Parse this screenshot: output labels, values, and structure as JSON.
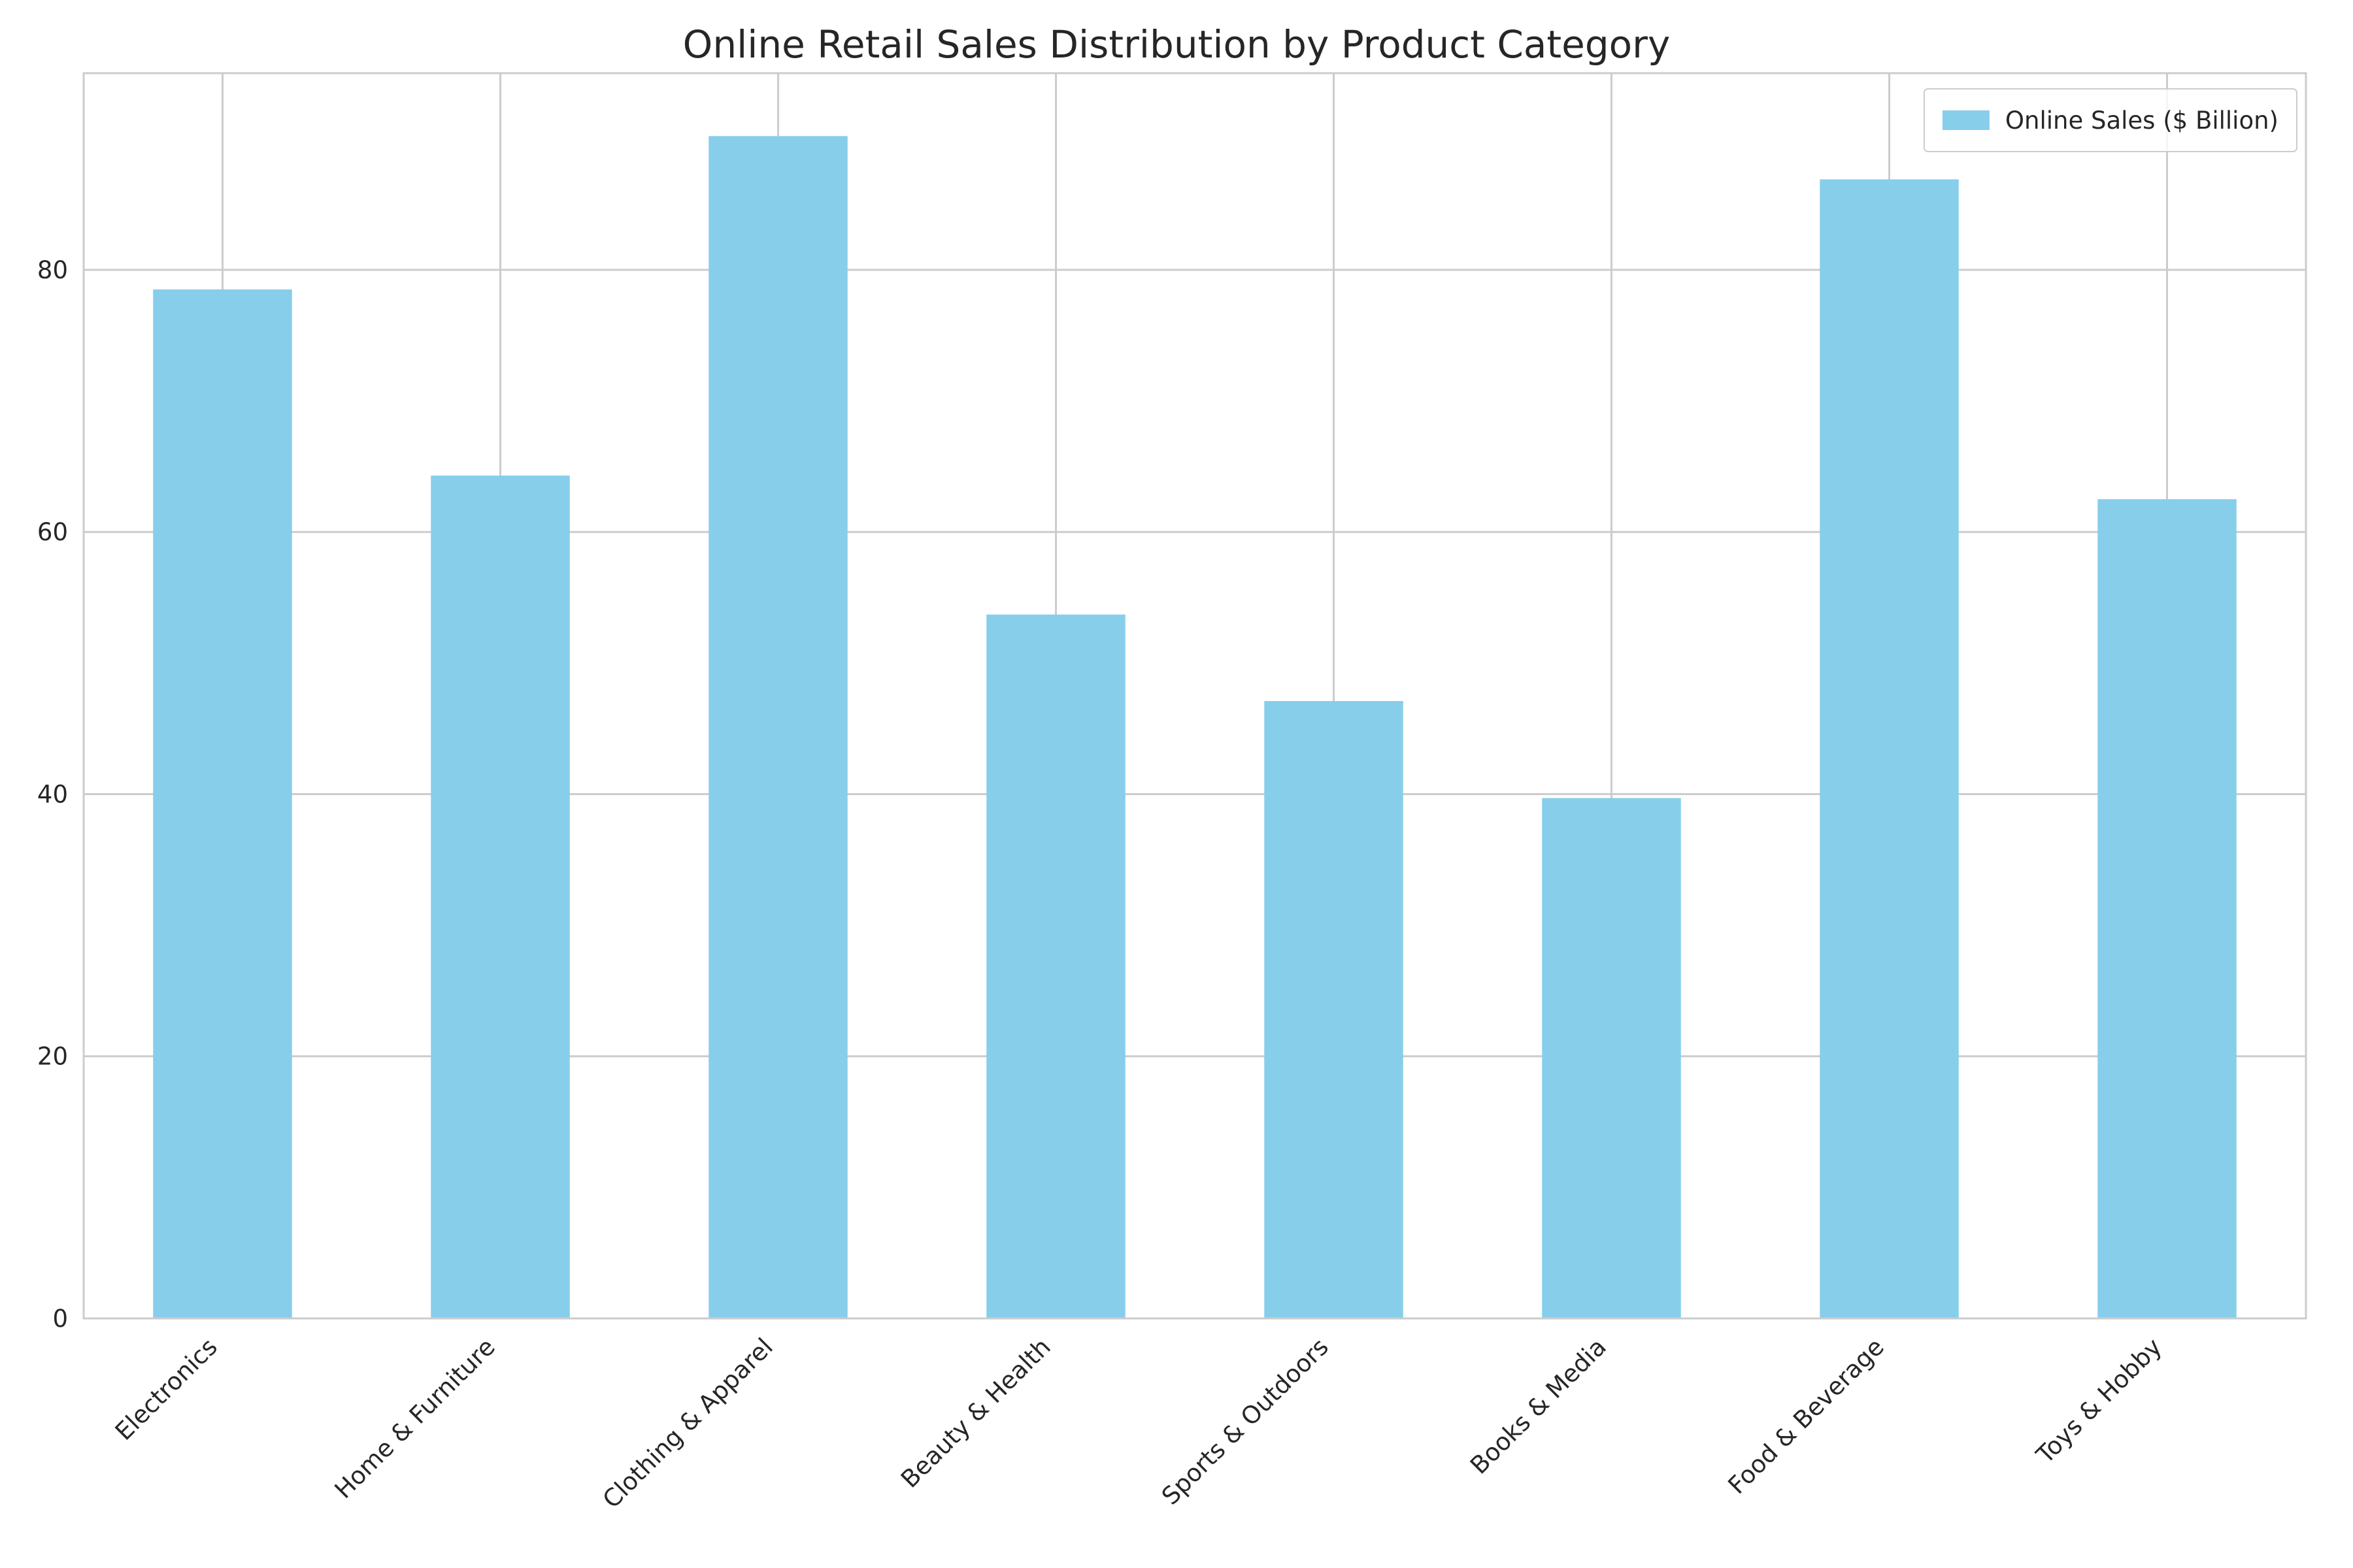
{
  "chart_data": {
    "type": "bar",
    "title": "Online Retail Sales Distribution by Product Category",
    "xlabel": "",
    "ylabel": "",
    "categories": [
      "Electronics",
      "Home & Furniture",
      "Clothing & Apparel",
      "Beauty & Health",
      "Sports & Outdoors",
      "Books & Media",
      "Food & Beverage",
      "Toys & Hobby"
    ],
    "series": [
      {
        "name": "Online Sales ($ Billion)",
        "values": [
          78.5,
          64.3,
          90.2,
          53.7,
          47.1,
          39.7,
          86.9,
          62.5
        ],
        "color": "#87CEEB"
      }
    ],
    "ylim": [
      0,
      95
    ],
    "yticks": [
      0,
      20,
      40,
      60,
      80
    ],
    "grid": true,
    "legend_position": "top-right",
    "colors": {
      "bar": "#87CEEB",
      "grid": "#cccccc",
      "axes_edge": "#cccccc",
      "text": "#262626"
    }
  }
}
